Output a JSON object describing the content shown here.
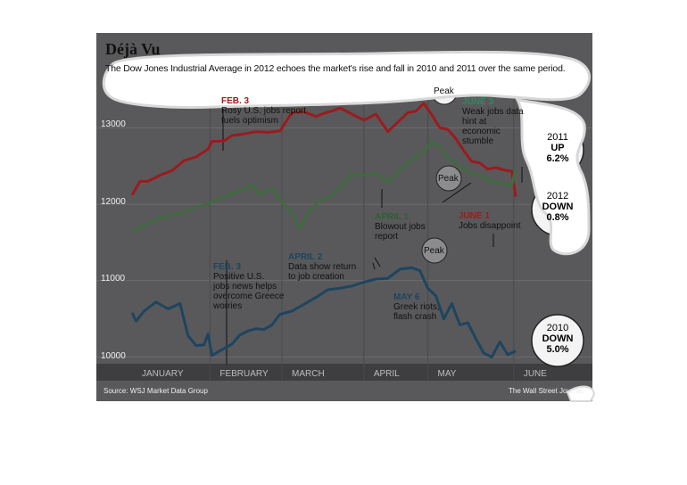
{
  "header": {
    "title": "Déjà Vu",
    "subtitle": "The Dow Jones Industrial Average in 2012 echoes the market's rise and fall in 2010 and 2011 over the same period."
  },
  "annotations": {
    "feb3_2012": {
      "head": "FEB. 3",
      "l1": "Rosy U.S. jobs report",
      "l2": "fuels optimism"
    },
    "june3_2011": {
      "head": "JUNE 3",
      "l1": "Weak jobs data",
      "l2": "hint at",
      "l3": "economic",
      "l4": "stumble"
    },
    "april1_2011": {
      "head": "APRIL 1",
      "l1": "Blowout jobs",
      "l2": "report"
    },
    "june1_2012": {
      "head": "JUNE 1",
      "l1": "Jobs disappoint"
    },
    "feb3_2010": {
      "head": "FEB. 3",
      "l1": "Positive U.S.",
      "l2": "jobs news helps",
      "l3": "overcome Greece",
      "l4": "worries"
    },
    "april2_2010": {
      "head": "APRIL 2",
      "l1": "Data show return",
      "l2": "to job creation"
    },
    "may6_2010": {
      "head": "MAY 6",
      "l1": "Greek riots,",
      "l2": "flash crash"
    },
    "peak": "Peak"
  },
  "badges": {
    "y2011": {
      "year": "2011",
      "dir": "UP",
      "pct": "6.2%"
    },
    "y2012": {
      "year": "2012",
      "dir": "DOWN",
      "pct": "0.8%"
    },
    "y2010": {
      "year": "2010",
      "dir": "DOWN",
      "pct": "5.0%"
    }
  },
  "footer": {
    "source": "Source: WSJ Market Data Group",
    "credit": "The Wall Street Journal"
  },
  "colors": {
    "s2012": "#9b1b1e",
    "s2011": "#3f6b3f",
    "s2010": "#1d4560",
    "background": "#59595b",
    "month_bar": "#3e3e40"
  },
  "chart_data": {
    "type": "line",
    "title": "Déjà Vu",
    "ylim": [
      9900,
      13600
    ],
    "xlim": [
      0,
      100
    ],
    "yticks": [
      "13000",
      "12000",
      "11000",
      "10000"
    ],
    "ytick_values": [
      13000,
      12000,
      11000,
      10000
    ],
    "months": [
      "JANUARY",
      "FEBRUARY",
      "MARCH",
      "APRIL",
      "MAY",
      "JUNE"
    ],
    "month_starts": [
      0,
      19.5,
      37.5,
      58,
      74,
      95.5
    ],
    "series": [
      {
        "name": "2012",
        "x": [
          0,
          2,
          4,
          7,
          10,
          13,
          16,
          19,
          20,
          23,
          25,
          28,
          31,
          34,
          37,
          40,
          43,
          46,
          48,
          50,
          52,
          55,
          58,
          61,
          64,
          67,
          69,
          71,
          73,
          75,
          77,
          79,
          81,
          83,
          85,
          87,
          89,
          91,
          93,
          95,
          96
        ],
        "values": [
          12120,
          12300,
          12300,
          12380,
          12440,
          12570,
          12620,
          12720,
          12820,
          12830,
          12900,
          12920,
          12950,
          12940,
          12960,
          13200,
          13210,
          13150,
          13190,
          13220,
          13260,
          13180,
          13100,
          13180,
          12950,
          13100,
          13200,
          13220,
          13320,
          13170,
          13000,
          12980,
          12860,
          12700,
          12560,
          12540,
          12460,
          12480,
          12450,
          12430,
          12100
        ]
      },
      {
        "name": "2011",
        "x": [
          0,
          3,
          6,
          9,
          12,
          15,
          18,
          21,
          24,
          27,
          30,
          32,
          35,
          38,
          40,
          42,
          44,
          47,
          50,
          52,
          55,
          58,
          61,
          64,
          67,
          70,
          73,
          75,
          77,
          79,
          81,
          83,
          85,
          87,
          89,
          91,
          93,
          95,
          96
        ],
        "values": [
          11650,
          11720,
          11800,
          11850,
          11880,
          11940,
          11990,
          12050,
          12120,
          12180,
          12250,
          12130,
          12200,
          12000,
          11890,
          11680,
          11880,
          12050,
          12110,
          12220,
          12390,
          12380,
          12400,
          12290,
          12450,
          12590,
          12690,
          12810,
          12760,
          12610,
          12530,
          12470,
          12400,
          12380,
          12320,
          12290,
          12260,
          12250,
          12470
        ]
      },
      {
        "name": "2010",
        "x": [
          0,
          1,
          3,
          6,
          9,
          12,
          14,
          16,
          18,
          19,
          20,
          21,
          23,
          25,
          27,
          29,
          31,
          33,
          35,
          37,
          40,
          43,
          46,
          49,
          52,
          55,
          58,
          61,
          64,
          67,
          70,
          72,
          74,
          76,
          78,
          80,
          82,
          84,
          86,
          88,
          90,
          92,
          94,
          96
        ],
        "values": [
          10580,
          10470,
          10600,
          10720,
          10630,
          10700,
          10280,
          10150,
          10160,
          10300,
          10020,
          10050,
          10110,
          10170,
          10290,
          10340,
          10370,
          10360,
          10420,
          10560,
          10600,
          10690,
          10780,
          10880,
          10900,
          10930,
          10980,
          11020,
          11030,
          11150,
          11170,
          11130,
          10900,
          10800,
          10500,
          10700,
          10420,
          10450,
          10240,
          10050,
          10000,
          10200,
          10030,
          10080
        ]
      }
    ]
  }
}
